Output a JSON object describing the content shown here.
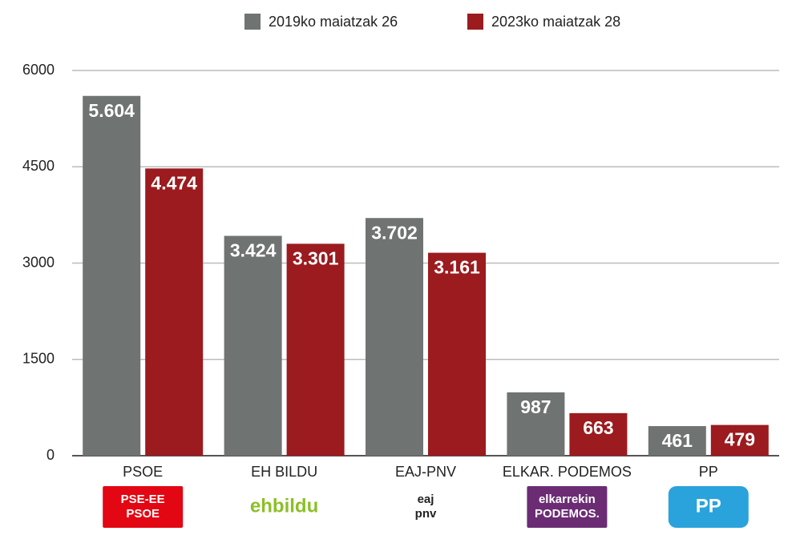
{
  "chart_data": {
    "type": "bar",
    "categories": [
      "PSOE",
      "EH BILDU",
      "EAJ-PNV",
      "ELKAR. PODEMOS",
      "PP"
    ],
    "series": [
      {
        "name": "2019ko maiatzak 26",
        "color": "#6f7371",
        "values": [
          5604,
          3424,
          3702,
          987,
          461
        ],
        "value_labels": [
          "5.604",
          "3.424",
          "3.702",
          "987",
          "461"
        ]
      },
      {
        "name": "2023ko maiatzak 28",
        "color": "#9b1b1f",
        "values": [
          4474,
          3301,
          3161,
          663,
          479
        ],
        "value_labels": [
          "4.474",
          "3.301",
          "3.161",
          "663",
          "479"
        ]
      }
    ],
    "ylim": [
      0,
      6000
    ],
    "yticks": [
      0,
      1500,
      3000,
      4500,
      6000
    ],
    "grid": true,
    "legend": "top"
  },
  "logos": [
    {
      "lines": [
        "PSE-EE",
        "PSOE"
      ],
      "color": "#e30613",
      "text_color": "#ffffff"
    },
    {
      "lines": [
        "ehbildu"
      ],
      "color": "#ffffff",
      "text_color": "#8cbf26"
    },
    {
      "lines": [
        "eaj",
        "pnv"
      ],
      "color": "#ffffff",
      "text_color": "#222222"
    },
    {
      "lines": [
        "elkarrekin",
        "PODEMOS."
      ],
      "color": "#6b2c74",
      "text_color": "#ffffff"
    },
    {
      "lines": [
        "PP"
      ],
      "color": "#2aa3dc",
      "text_color": "#ffffff"
    }
  ]
}
